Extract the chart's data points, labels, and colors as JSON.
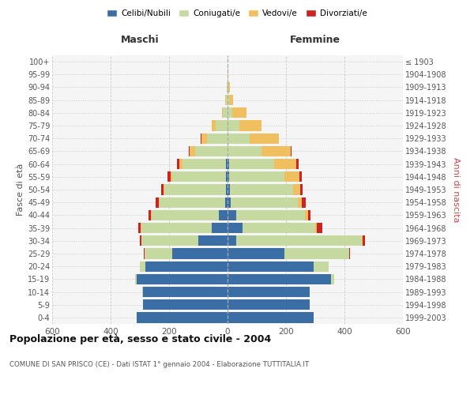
{
  "age_groups": [
    "0-4",
    "5-9",
    "10-14",
    "15-19",
    "20-24",
    "25-29",
    "30-34",
    "35-39",
    "40-44",
    "45-49",
    "50-54",
    "55-59",
    "60-64",
    "65-69",
    "70-74",
    "75-79",
    "80-84",
    "85-89",
    "90-94",
    "95-99",
    "100+"
  ],
  "birth_years": [
    "1999-2003",
    "1994-1998",
    "1989-1993",
    "1984-1988",
    "1979-1983",
    "1974-1978",
    "1969-1973",
    "1964-1968",
    "1959-1963",
    "1954-1958",
    "1949-1953",
    "1944-1948",
    "1939-1943",
    "1934-1938",
    "1929-1933",
    "1924-1928",
    "1919-1923",
    "1914-1918",
    "1909-1913",
    "1904-1908",
    "≤ 1903"
  ],
  "male_celibe": [
    310,
    290,
    290,
    310,
    280,
    190,
    100,
    55,
    30,
    8,
    5,
    5,
    5,
    0,
    0,
    0,
    0,
    0,
    0,
    0,
    0
  ],
  "male_coniugato": [
    0,
    0,
    2,
    5,
    20,
    95,
    195,
    240,
    230,
    225,
    210,
    185,
    150,
    110,
    70,
    40,
    15,
    5,
    2,
    0,
    0
  ],
  "male_vedovo": [
    0,
    0,
    0,
    0,
    0,
    0,
    0,
    2,
    2,
    2,
    3,
    5,
    10,
    20,
    20,
    15,
    5,
    2,
    0,
    0,
    0
  ],
  "male_divorziato": [
    0,
    0,
    0,
    0,
    0,
    2,
    5,
    8,
    8,
    10,
    10,
    10,
    8,
    2,
    2,
    0,
    0,
    0,
    0,
    0,
    0
  ],
  "female_celibe": [
    295,
    280,
    280,
    355,
    295,
    195,
    30,
    50,
    30,
    10,
    8,
    5,
    5,
    0,
    0,
    0,
    0,
    0,
    0,
    0,
    0
  ],
  "female_coniugato": [
    0,
    0,
    2,
    10,
    50,
    220,
    430,
    250,
    235,
    230,
    215,
    190,
    155,
    115,
    75,
    40,
    15,
    5,
    2,
    0,
    0
  ],
  "female_vedovo": [
    0,
    0,
    0,
    0,
    0,
    0,
    2,
    5,
    10,
    15,
    25,
    50,
    75,
    100,
    100,
    75,
    50,
    15,
    5,
    2,
    0
  ],
  "female_divorziato": [
    0,
    0,
    0,
    0,
    0,
    3,
    8,
    20,
    10,
    12,
    10,
    10,
    8,
    5,
    2,
    2,
    0,
    0,
    0,
    0,
    0
  ],
  "colors": {
    "celibe": "#3b6ea5",
    "coniugato": "#c5d9a0",
    "vedovo": "#f0c060",
    "divorziato": "#cc2222"
  },
  "title": "Popolazione per età, sesso e stato civile - 2004",
  "subtitle": "COMUNE DI SAN PRISCO (CE) - Dati ISTAT 1° gennaio 2004 - Elaborazione TUTTITALIA.IT",
  "xlabel_left": "Maschi",
  "xlabel_right": "Femmine",
  "ylabel_left": "Fasce di età",
  "ylabel_right": "Anni di nascita",
  "xlim": 600,
  "bg_color": "#f5f5f5",
  "grid_color": "#cccccc"
}
